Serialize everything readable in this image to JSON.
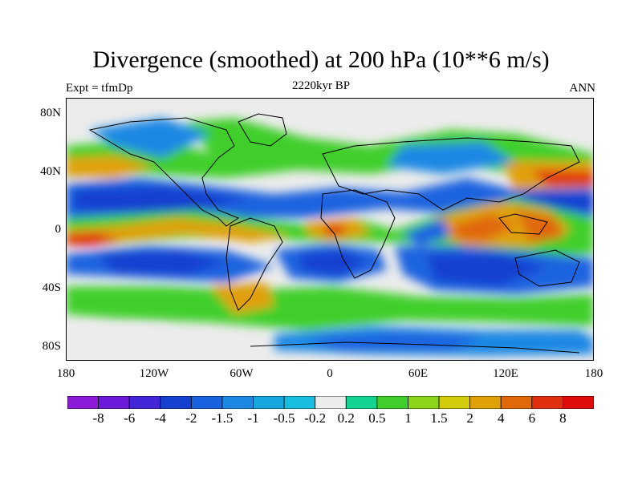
{
  "title": "Divergence (smoothed) at 200 hPa (10**6 m/s)",
  "subtitle_left": "Expt = tfmDp",
  "subtitle_center": "2220kyr BP",
  "subtitle_right": "ANN",
  "lat_ticks": [
    "80N",
    "40N",
    "0",
    "40S",
    "80S"
  ],
  "lon_ticks": [
    "180",
    "120W",
    "60W",
    "0",
    "60E",
    "120E",
    "180"
  ],
  "colorbar": {
    "labels": [
      "-8",
      "-6",
      "-4",
      "-2",
      "-1.5",
      "-1",
      "-0.5",
      "-0.2",
      "0.2",
      "0.5",
      "1",
      "1.5",
      "2",
      "4",
      "6",
      "8"
    ],
    "colors": [
      "#8b1ad9",
      "#6b1ad9",
      "#4426d9",
      "#1640d0",
      "#1a63e0",
      "#1d88e4",
      "#15a6e0",
      "#18bee0",
      "#ececec",
      "#12d490",
      "#40cf2a",
      "#8cd41a",
      "#d4cc0a",
      "#e0a008",
      "#e06808",
      "#e03010",
      "#e00a0a"
    ]
  }
}
